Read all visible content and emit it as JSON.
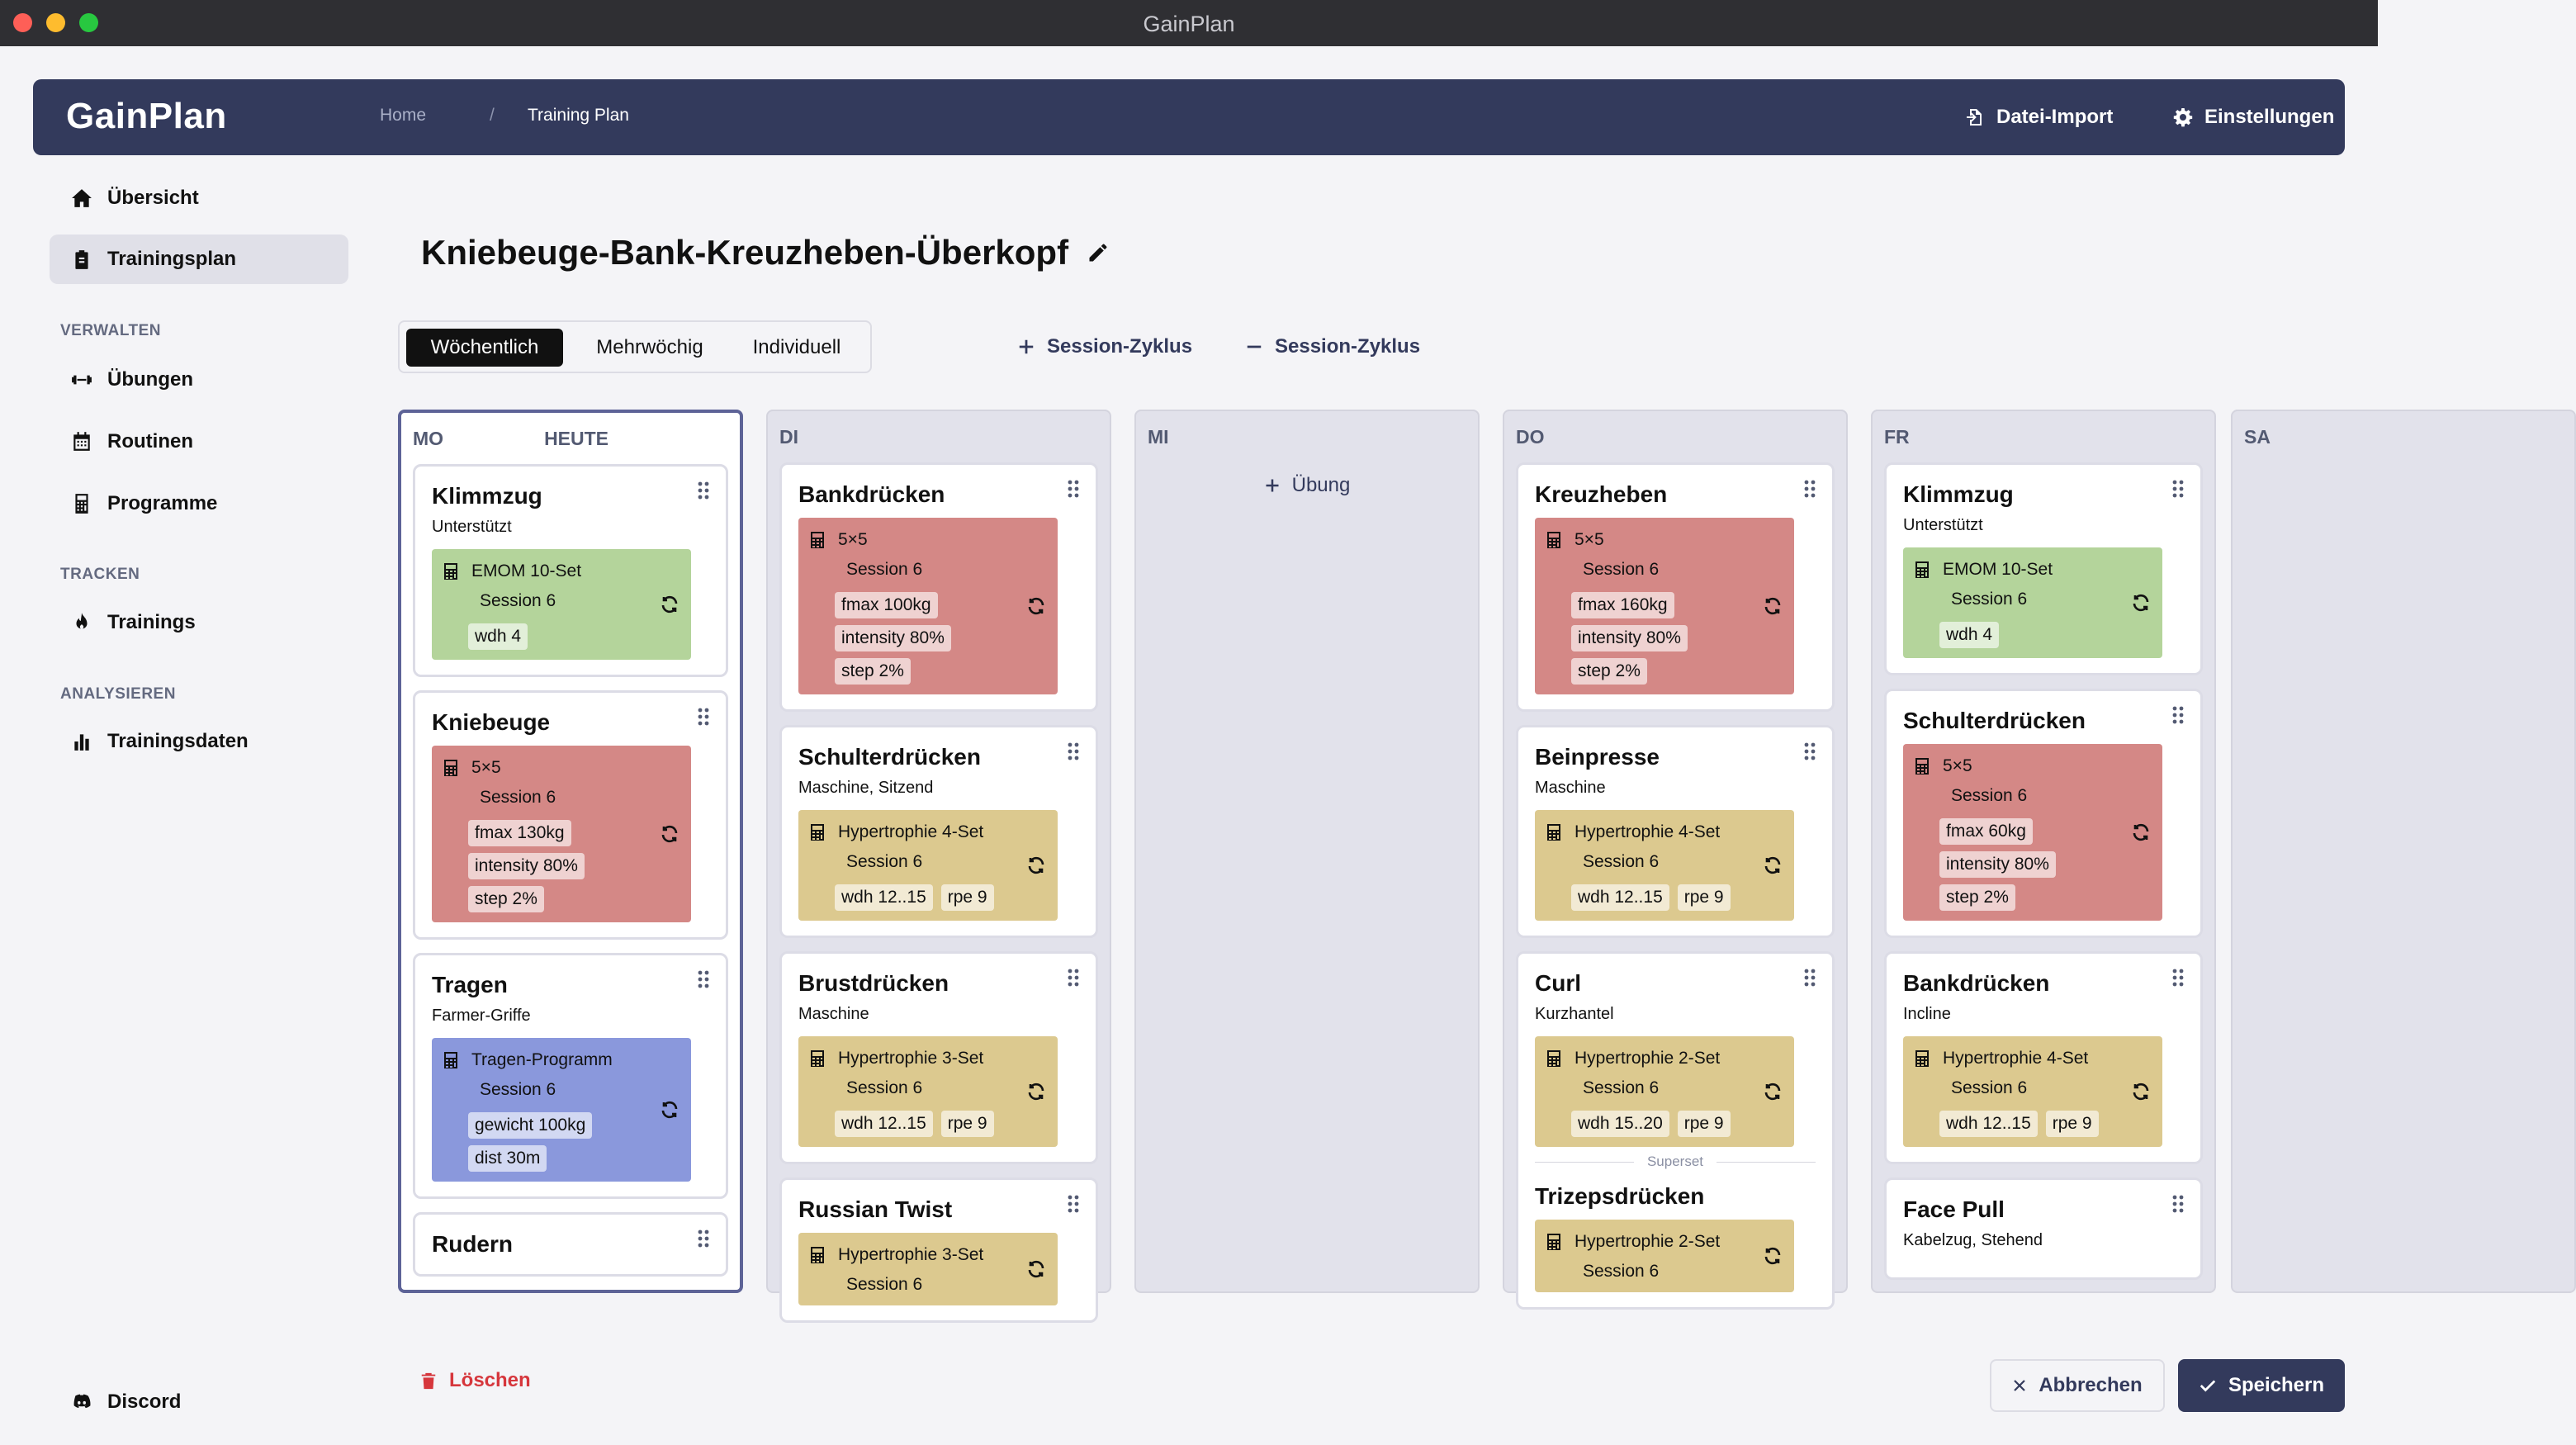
{
  "window": {
    "title": "GainPlan"
  },
  "header": {
    "logo": "GainPlan",
    "breadcrumb": {
      "home": "Home",
      "separator": "/",
      "current": "Training Plan"
    },
    "import_label": "Datei-Import",
    "settings_label": "Einstellungen"
  },
  "sidebar": {
    "top": [
      {
        "label": "Übersicht",
        "icon": "home-icon"
      },
      {
        "label": "Trainingsplan",
        "icon": "clipboard-icon",
        "active": true
      }
    ],
    "sections": [
      {
        "title": "VERWALTEN",
        "items": [
          {
            "label": "Übungen",
            "icon": "dumbbell-icon"
          },
          {
            "label": "Routinen",
            "icon": "calendar-icon"
          },
          {
            "label": "Programme",
            "icon": "calculator-icon"
          }
        ]
      },
      {
        "title": "TRACKEN",
        "items": [
          {
            "label": "Trainings",
            "icon": "flame-icon"
          }
        ]
      },
      {
        "title": "ANALYSIEREN",
        "items": [
          {
            "label": "Trainingsdaten",
            "icon": "bar-chart-icon"
          }
        ]
      }
    ],
    "footer": {
      "label": "Discord",
      "icon": "discord-icon"
    }
  },
  "plan": {
    "title": "Kniebeuge-Bank-Kreuzheben-Überkopf"
  },
  "mode_tabs": [
    "Wöchentlich",
    "Mehrwöchig",
    "Individuell"
  ],
  "selected_mode": "Wöchentlich",
  "cycle_add_label": "Session-Zyklus",
  "cycle_remove_label": "Session-Zyklus",
  "add_exercise_label": "Übung",
  "superset_label": "Superset",
  "days": [
    {
      "label": "MO",
      "today_label": "HEUTE",
      "exercises": [
        {
          "name": "Klimmzug",
          "sub": "Unterstützt",
          "block": {
            "color": "green",
            "name": "EMOM 10-Set",
            "session": "Session 6",
            "tags": [
              "wdh 4"
            ],
            "layout": "column"
          }
        },
        {
          "name": "Kniebeuge",
          "sub": "",
          "block": {
            "color": "red",
            "name": "5×5",
            "session": "Session 6",
            "tags": [
              "fmax 130kg",
              "intensity 80%",
              "step 2%"
            ],
            "layout": "column"
          }
        },
        {
          "name": "Tragen",
          "sub": "Farmer-Griffe",
          "block": {
            "color": "blue",
            "name": "Tragen-Programm",
            "session": "Session 6",
            "tags": [
              "gewicht 100kg",
              "dist 30m"
            ],
            "layout": "column"
          }
        },
        {
          "name": "Rudern",
          "sub": "",
          "block": null
        }
      ]
    },
    {
      "label": "DI",
      "exercises": [
        {
          "name": "Bankdrücken",
          "sub": "",
          "block": {
            "color": "red",
            "name": "5×5",
            "session": "Session 6",
            "tags": [
              "fmax 100kg",
              "intensity 80%",
              "step 2%"
            ],
            "layout": "column"
          }
        },
        {
          "name": "Schulterdrücken",
          "sub": "Maschine, Sitzend",
          "block": {
            "color": "yellow",
            "name": "Hypertrophie 4-Set",
            "session": "Session 6",
            "tags": [
              "wdh 12..15",
              "rpe 9"
            ],
            "layout": "row"
          }
        },
        {
          "name": "Brustdrücken",
          "sub": "Maschine",
          "block": {
            "color": "yellow",
            "name": "Hypertrophie 3-Set",
            "session": "Session 6",
            "tags": [
              "wdh 12..15",
              "rpe 9"
            ],
            "layout": "row"
          }
        },
        {
          "name": "Russian Twist",
          "sub": "",
          "block": {
            "color": "yellow",
            "name": "Hypertrophie 3-Set",
            "session": "Session 6",
            "tags": [],
            "layout": "row"
          }
        }
      ]
    },
    {
      "label": "MI",
      "exercises": []
    },
    {
      "label": "DO",
      "exercises": [
        {
          "name": "Kreuzheben",
          "sub": "",
          "block": {
            "color": "red",
            "name": "5×5",
            "session": "Session 6",
            "tags": [
              "fmax 160kg",
              "intensity 80%",
              "step 2%"
            ],
            "layout": "column"
          }
        },
        {
          "name": "Beinpresse",
          "sub": "Maschine",
          "block": {
            "color": "yellow",
            "name": "Hypertrophie 4-Set",
            "session": "Session 6",
            "tags": [
              "wdh 12..15",
              "rpe 9"
            ],
            "layout": "row"
          }
        },
        {
          "name": "Curl",
          "sub": "Kurzhantel",
          "block": {
            "color": "yellow",
            "name": "Hypertrophie 2-Set",
            "session": "Session 6",
            "tags": [
              "wdh 15..20",
              "rpe 9"
            ],
            "layout": "row"
          },
          "superset_with": {
            "name": "Trizepsdrücken",
            "block": {
              "color": "yellow",
              "name": "Hypertrophie 2-Set",
              "session": "Session 6",
              "tags": [],
              "layout": "row"
            }
          }
        }
      ]
    },
    {
      "label": "FR",
      "exercises": [
        {
          "name": "Klimmzug",
          "sub": "Unterstützt",
          "block": {
            "color": "green",
            "name": "EMOM 10-Set",
            "session": "Session 6",
            "tags": [
              "wdh 4"
            ],
            "layout": "column"
          }
        },
        {
          "name": "Schulterdrücken",
          "sub": "",
          "block": {
            "color": "red",
            "name": "5×5",
            "session": "Session 6",
            "tags": [
              "fmax 60kg",
              "intensity 80%",
              "step 2%"
            ],
            "layout": "column"
          }
        },
        {
          "name": "Bankdrücken",
          "sub": "Incline",
          "block": {
            "color": "yellow",
            "name": "Hypertrophie 4-Set",
            "session": "Session 6",
            "tags": [
              "wdh 12..15",
              "rpe 9"
            ],
            "layout": "row"
          }
        },
        {
          "name": "Face Pull",
          "sub": "Kabelzug, Stehend",
          "block": null
        }
      ]
    },
    {
      "label": "SA",
      "exercises": []
    }
  ],
  "footer": {
    "delete_label": "Löschen",
    "cancel_label": "Abbrechen",
    "save_label": "Speichern"
  },
  "colors": {
    "header_bg": "#333a5c",
    "today_border": "#5d6397",
    "day_bg": "#e2e2eb",
    "block_green": "#b4d49b",
    "block_red": "#d48886",
    "block_yellow": "#dcc98f",
    "block_blue": "#8a98dc",
    "delete": "#d6363c"
  }
}
